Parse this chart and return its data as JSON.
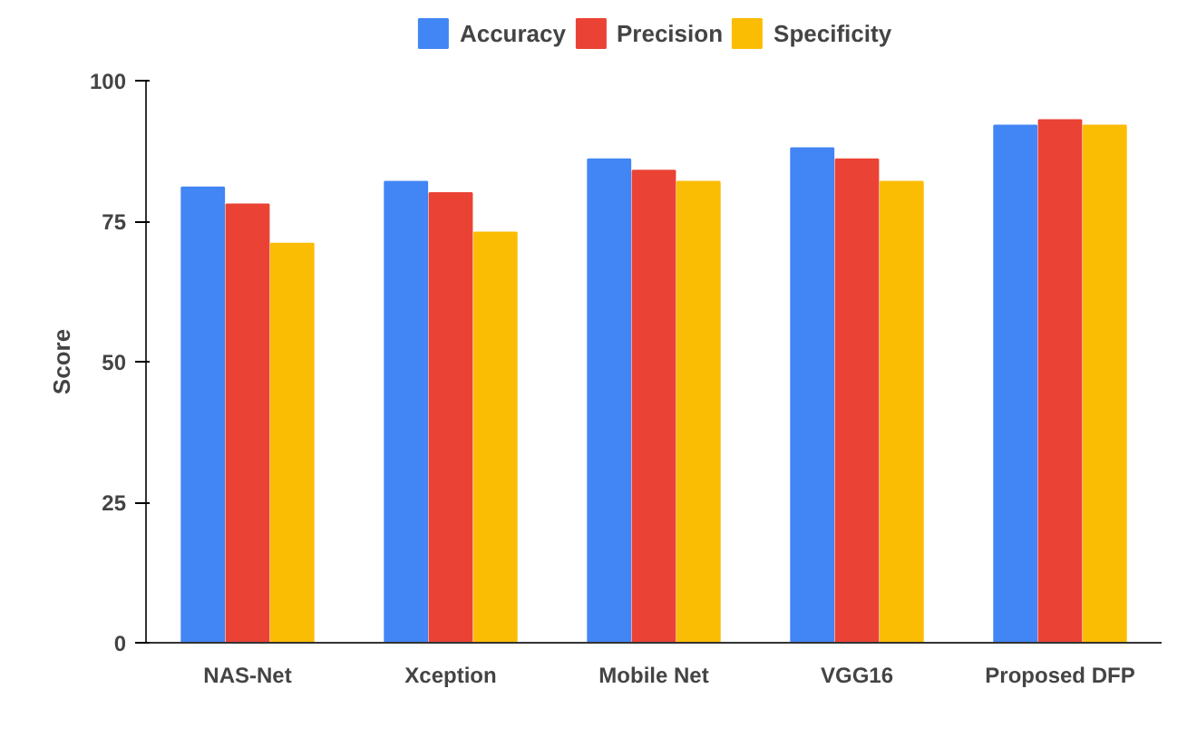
{
  "chart_data": {
    "type": "bar",
    "ylabel": "Score",
    "categories": [
      "NAS-Net",
      "Xception",
      "Mobile Net",
      "VGG16",
      "Proposed DFP"
    ],
    "series": [
      {
        "name": "Accuracy",
        "color": "#4285f4",
        "values": [
          81,
          82,
          86,
          88,
          92
        ]
      },
      {
        "name": "Precision",
        "color": "#ea4335",
        "values": [
          78,
          80,
          84,
          86,
          93
        ]
      },
      {
        "name": "Specificity",
        "color": "#fbbc04",
        "values": [
          71,
          73,
          82,
          82,
          92
        ]
      }
    ],
    "ylim": [
      0,
      100
    ],
    "yticks": [
      0,
      25,
      50,
      75,
      100
    ],
    "grid": false,
    "legend": "top"
  }
}
